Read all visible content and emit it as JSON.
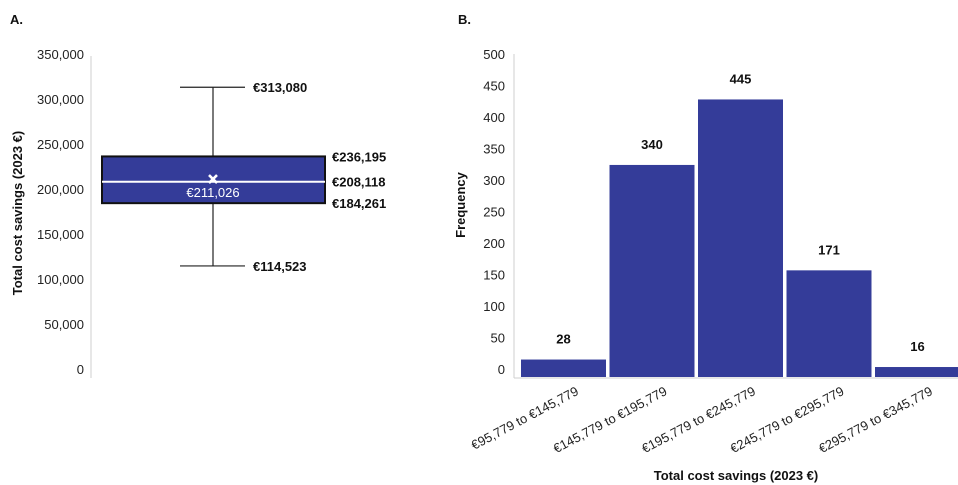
{
  "chart_data": [
    {
      "panel_label": "A.",
      "type": "box",
      "ylabel": "Total cost savings (2023 €)",
      "ylim": [
        0,
        350000
      ],
      "y_ticks": [
        "0",
        "50,000",
        "100,000",
        "150,000",
        "200,000",
        "250,000",
        "300,000",
        "350,000"
      ],
      "y_tick_values": [
        0,
        50000,
        100000,
        150000,
        200000,
        250000,
        300000,
        350000
      ],
      "grid": false,
      "stats": {
        "min": 114523,
        "q1": 184261,
        "median": 208118,
        "mean": 211026,
        "q3": 236195,
        "max": 313080
      },
      "annotations": {
        "max": "€313,080",
        "q3": "€236,195",
        "median": "€208,118",
        "q1": "€184,261",
        "min": "€114,523",
        "mean": "€211,026"
      },
      "colors": {
        "box_fill": "#343c99",
        "box_edge": "#111111",
        "median_line": "#ffffff",
        "mean_marker": "#ffffff"
      }
    },
    {
      "panel_label": "B.",
      "type": "bar",
      "xlabel": "Total cost savings (2023 €)",
      "ylabel": "Frequency",
      "ylim": [
        0,
        500
      ],
      "y_ticks": [
        "0",
        "50",
        "100",
        "150",
        "200",
        "250",
        "300",
        "350",
        "400",
        "450",
        "500"
      ],
      "y_tick_values": [
        0,
        50,
        100,
        150,
        200,
        250,
        300,
        350,
        400,
        450,
        500
      ],
      "grid": false,
      "categories": [
        "€95,779 to €145,779",
        "€145,779 to €195,779",
        "€195,779 to €245,779",
        "€245,779 to €295,779",
        "€295,779 to €345,779"
      ],
      "values": [
        28,
        340,
        445,
        171,
        16
      ],
      "data_labels": [
        "28",
        "340",
        "445",
        "171",
        "16"
      ],
      "colors": {
        "bar": "#343c99"
      }
    }
  ]
}
